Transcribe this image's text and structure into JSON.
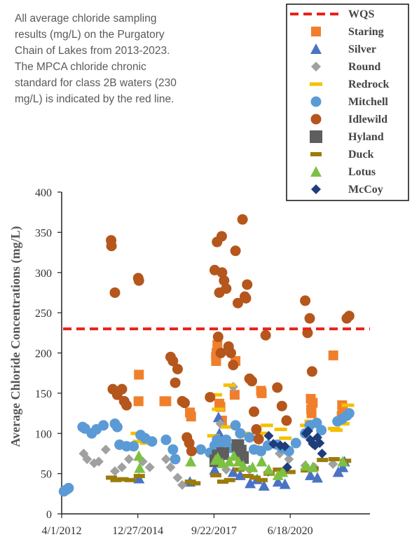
{
  "caption": [
    "All average chloride sampling",
    "results (mg/L) on the Purgatory",
    "Chain of Lakes from 2013-2023.",
    "The MPCA chloride chronic",
    "standard for class 2B waters (230",
    "mg/L) is indicated by the red line."
  ],
  "chart_data": {
    "type": "scatter",
    "ylabel": "Average Chloride Concentrations (mg/L)",
    "xlabel": "",
    "title": "",
    "ylim": [
      0,
      400
    ],
    "yticks": [
      0,
      50,
      100,
      150,
      200,
      250,
      300,
      350,
      400
    ],
    "xlim": [
      "2012-04-01",
      "2023-05-01"
    ],
    "xticks": [
      "2012-04-01",
      "2014-12-27",
      "2017-09-22",
      "2020-06-18"
    ],
    "xtick_labels": [
      "4/1/2012",
      "12/27/2014",
      "9/22/2017",
      "6/18/2020"
    ],
    "grid": false,
    "legend_position": "top-right",
    "reference_line": {
      "name": "WQS",
      "value": 230,
      "color": "#e8221b"
    },
    "series": [
      {
        "name": "Staring",
        "marker": "square",
        "color": "#f07f2c",
        "points": [
          [
            "2015-01-10",
            173
          ],
          [
            "2015-01-05",
            140
          ],
          [
            "2015-12-10",
            140
          ],
          [
            "2016-01-05",
            140
          ],
          [
            "2016-11-10",
            126
          ],
          [
            "2016-11-25",
            121
          ],
          [
            "2017-10-20",
            190
          ],
          [
            "2017-10-25",
            200
          ],
          [
            "2017-11-05",
            210
          ],
          [
            "2017-10-18",
            195
          ],
          [
            "2017-12-01",
            137
          ],
          [
            "2017-12-15",
            133
          ],
          [
            "2018-01-05",
            116
          ],
          [
            "2018-07-01",
            190
          ],
          [
            "2018-06-20",
            148
          ],
          [
            "2019-06-01",
            153
          ],
          [
            "2019-06-10",
            150
          ],
          [
            "2021-03-15",
            143
          ],
          [
            "2021-03-20",
            130
          ],
          [
            "2021-04-10",
            138
          ],
          [
            "2021-03-25",
            125
          ],
          [
            "2022-01-05",
            197
          ],
          [
            "2022-05-01",
            135
          ],
          [
            "2022-05-10",
            128
          ],
          [
            "2022-04-25",
            122
          ]
        ]
      },
      {
        "name": "Silver",
        "marker": "triangle",
        "color": "#4a73c4",
        "points": [
          [
            "2015-01-10",
            44
          ],
          [
            "2016-11-10",
            40
          ],
          [
            "2017-11-20",
            120
          ],
          [
            "2017-12-01",
            100
          ],
          [
            "2017-10-01",
            55
          ],
          [
            "2018-06-01",
            52
          ],
          [
            "2018-09-01",
            48
          ],
          [
            "2019-01-10",
            38
          ],
          [
            "2019-04-10",
            43
          ],
          [
            "2019-07-10",
            35
          ],
          [
            "2020-01-10",
            40
          ],
          [
            "2020-04-10",
            37
          ],
          [
            "2021-03-10",
            48
          ],
          [
            "2021-06-10",
            45
          ],
          [
            "2022-03-10",
            52
          ],
          [
            "2022-05-10",
            58
          ],
          [
            "2022-06-01",
            65
          ]
        ]
      },
      {
        "name": "Round",
        "marker": "diamond",
        "color": "#a0a0a0",
        "points": [
          [
            "2013-01-15",
            75
          ],
          [
            "2013-03-01",
            68
          ],
          [
            "2013-06-01",
            63
          ],
          [
            "2013-08-01",
            65
          ],
          [
            "2013-11-01",
            80
          ],
          [
            "2014-03-01",
            53
          ],
          [
            "2014-06-01",
            58
          ],
          [
            "2014-09-01",
            68
          ],
          [
            "2015-03-01",
            65
          ],
          [
            "2015-06-01",
            58
          ],
          [
            "2016-01-01",
            68
          ],
          [
            "2016-03-01",
            58
          ],
          [
            "2016-06-01",
            45
          ],
          [
            "2016-08-01",
            36
          ],
          [
            "2017-10-01",
            70
          ],
          [
            "2017-12-01",
            75
          ],
          [
            "2017-12-15",
            112
          ],
          [
            "2018-03-01",
            55
          ],
          [
            "2018-06-01",
            158
          ],
          [
            "2018-09-01",
            70
          ],
          [
            "2019-01-01",
            55
          ],
          [
            "2019-05-01",
            80
          ],
          [
            "2019-09-01",
            52
          ],
          [
            "2020-02-01",
            75
          ],
          [
            "2020-06-01",
            68
          ],
          [
            "2021-01-01",
            60
          ],
          [
            "2021-05-01",
            58
          ],
          [
            "2022-01-01",
            62
          ]
        ]
      },
      {
        "name": "Redrock",
        "marker": "dash",
        "color": "#f5c000",
        "points": [
          [
            "2014-12-15",
            100
          ],
          [
            "2015-01-15",
            90
          ],
          [
            "2015-04-15",
            88
          ],
          [
            "2017-09-15",
            97
          ],
          [
            "2017-10-15",
            148
          ],
          [
            "2017-11-15",
            130
          ],
          [
            "2018-03-15",
            108
          ],
          [
            "2018-04-15",
            160
          ],
          [
            "2018-10-15",
            100
          ],
          [
            "2019-06-15",
            100
          ],
          [
            "2019-08-15",
            110
          ],
          [
            "2020-02-15",
            105
          ],
          [
            "2020-04-15",
            94
          ],
          [
            "2021-01-15",
            110
          ],
          [
            "2021-03-15",
            115
          ],
          [
            "2022-01-15",
            106
          ],
          [
            "2022-02-15",
            104
          ],
          [
            "2022-05-15",
            112
          ],
          [
            "2022-07-15",
            135
          ]
        ]
      },
      {
        "name": "Mitchell",
        "marker": "circle",
        "color": "#5b9bd5",
        "points": [
          [
            "2012-05-01",
            28
          ],
          [
            "2012-06-01",
            30
          ],
          [
            "2012-07-01",
            32
          ],
          [
            "2013-01-01",
            108
          ],
          [
            "2013-02-01",
            106
          ],
          [
            "2013-05-01",
            100
          ],
          [
            "2013-07-01",
            105
          ],
          [
            "2013-10-01",
            110
          ],
          [
            "2014-03-01",
            112
          ],
          [
            "2014-04-01",
            108
          ],
          [
            "2014-05-01",
            86
          ],
          [
            "2014-08-01",
            84
          ],
          [
            "2014-11-01",
            84
          ],
          [
            "2015-02-01",
            98
          ],
          [
            "2015-04-01",
            94
          ],
          [
            "2015-07-01",
            90
          ],
          [
            "2016-01-01",
            92
          ],
          [
            "2016-04-01",
            80
          ],
          [
            "2016-05-01",
            68
          ],
          [
            "2017-04-01",
            80
          ],
          [
            "2017-08-01",
            76
          ],
          [
            "2017-10-01",
            85
          ],
          [
            "2017-11-01",
            92
          ],
          [
            "2018-01-01",
            88
          ],
          [
            "2018-03-01",
            92
          ],
          [
            "2018-05-01",
            82
          ],
          [
            "2018-07-01",
            110
          ],
          [
            "2018-09-01",
            100
          ],
          [
            "2019-01-01",
            95
          ],
          [
            "2019-03-01",
            80
          ],
          [
            "2019-06-01",
            78
          ],
          [
            "2019-09-01",
            85
          ],
          [
            "2020-01-01",
            86
          ],
          [
            "2020-03-01",
            82
          ],
          [
            "2020-06-01",
            78
          ],
          [
            "2020-09-01",
            88
          ],
          [
            "2021-01-01",
            100
          ],
          [
            "2021-03-01",
            110
          ],
          [
            "2021-06-01",
            113
          ],
          [
            "2021-08-01",
            104
          ],
          [
            "2022-03-01",
            115
          ],
          [
            "2022-05-01",
            118
          ],
          [
            "2022-07-01",
            122
          ],
          [
            "2022-08-01",
            125
          ]
        ]
      },
      {
        "name": "Idlewild",
        "marker": "circle",
        "color": "#b5561c",
        "points": [
          [
            "2014-01-10",
            340
          ],
          [
            "2014-01-15",
            333
          ],
          [
            "2014-03-01",
            275
          ],
          [
            "2014-02-01",
            155
          ],
          [
            "2014-04-01",
            148
          ],
          [
            "2014-06-01",
            155
          ],
          [
            "2014-07-01",
            140
          ],
          [
            "2014-08-01",
            135
          ],
          [
            "2015-01-01",
            293
          ],
          [
            "2015-01-10",
            290
          ],
          [
            "2016-03-01",
            195
          ],
          [
            "2016-04-01",
            190
          ],
          [
            "2016-06-01",
            180
          ],
          [
            "2016-05-01",
            163
          ],
          [
            "2016-08-01",
            140
          ],
          [
            "2016-09-01",
            138
          ],
          [
            "2016-10-01",
            95
          ],
          [
            "2016-11-01",
            88
          ],
          [
            "2016-12-01",
            78
          ],
          [
            "2017-08-01",
            145
          ],
          [
            "2017-10-01",
            303
          ],
          [
            "2017-11-01",
            338
          ],
          [
            "2018-01-01",
            345
          ],
          [
            "2018-01-05",
            300
          ],
          [
            "2018-02-01",
            290
          ],
          [
            "2018-03-01",
            280
          ],
          [
            "2017-12-01",
            275
          ],
          [
            "2017-11-15",
            220
          ],
          [
            "2017-12-20",
            200
          ],
          [
            "2018-04-01",
            208
          ],
          [
            "2018-05-01",
            200
          ],
          [
            "2018-06-01",
            185
          ],
          [
            "2018-07-01",
            327
          ],
          [
            "2018-08-01",
            262
          ],
          [
            "2018-10-01",
            366
          ],
          [
            "2018-11-01",
            270
          ],
          [
            "2018-11-15",
            268
          ],
          [
            "2018-12-01",
            285
          ],
          [
            "2019-01-01",
            168
          ],
          [
            "2019-02-01",
            165
          ],
          [
            "2019-03-01",
            127
          ],
          [
            "2019-04-01",
            105
          ],
          [
            "2019-05-01",
            93
          ],
          [
            "2019-08-01",
            222
          ],
          [
            "2020-01-01",
            157
          ],
          [
            "2020-03-01",
            134
          ],
          [
            "2020-05-01",
            116
          ],
          [
            "2021-01-01",
            265
          ],
          [
            "2021-02-01",
            225
          ],
          [
            "2021-03-01",
            243
          ],
          [
            "2021-04-01",
            177
          ],
          [
            "2022-07-01",
            243
          ],
          [
            "2022-08-01",
            246
          ]
        ]
      },
      {
        "name": "Hyland",
        "marker": "square-large",
        "color": "#5e5e5e",
        "points": [
          [
            "2017-10-15",
            66
          ],
          [
            "2017-11-15",
            72
          ],
          [
            "2018-01-15",
            75
          ],
          [
            "2018-08-01",
            85
          ],
          [
            "2018-09-01",
            78
          ],
          [
            "2018-10-01",
            70
          ]
        ]
      },
      {
        "name": "Duck",
        "marker": "dash-short",
        "color": "#9b7b0a",
        "points": [
          [
            "2014-01-15",
            45
          ],
          [
            "2014-03-15",
            42
          ],
          [
            "2014-06-15",
            43
          ],
          [
            "2014-09-15",
            42
          ],
          [
            "2015-01-15",
            47
          ],
          [
            "2016-11-15",
            40
          ],
          [
            "2017-01-15",
            38
          ],
          [
            "2017-10-15",
            48
          ],
          [
            "2018-01-15",
            40
          ],
          [
            "2018-04-15",
            42
          ],
          [
            "2018-08-15",
            55
          ],
          [
            "2018-12-15",
            47
          ],
          [
            "2019-03-15",
            45
          ],
          [
            "2019-06-15",
            42
          ],
          [
            "2019-09-15",
            50
          ],
          [
            "2020-01-15",
            55
          ],
          [
            "2020-06-15",
            52
          ],
          [
            "2021-01-15",
            54
          ],
          [
            "2021-04-15",
            56
          ],
          [
            "2021-08-15",
            67
          ],
          [
            "2022-01-15",
            68
          ],
          [
            "2022-06-15",
            66
          ]
        ]
      },
      {
        "name": "Lotus",
        "marker": "triangle",
        "color": "#7dc142",
        "points": [
          [
            "2015-01-10",
            72
          ],
          [
            "2015-01-20",
            57
          ],
          [
            "2016-11-20",
            65
          ],
          [
            "2017-10-10",
            67
          ],
          [
            "2017-11-10",
            70
          ],
          [
            "2018-01-10",
            63
          ],
          [
            "2018-04-10",
            65
          ],
          [
            "2018-06-10",
            72
          ],
          [
            "2018-08-10",
            65
          ],
          [
            "2018-10-10",
            60
          ],
          [
            "2019-02-10",
            58
          ],
          [
            "2019-06-10",
            65
          ],
          [
            "2019-09-10",
            55
          ],
          [
            "2020-01-10",
            48
          ],
          [
            "2020-03-10",
            52
          ],
          [
            "2021-01-10",
            60
          ],
          [
            "2021-04-10",
            58
          ],
          [
            "2022-05-10",
            65
          ]
        ]
      },
      {
        "name": "McCoy",
        "marker": "diamond",
        "color": "#1f3d7a",
        "points": [
          [
            "2019-09-10",
            97
          ],
          [
            "2019-11-10",
            87
          ],
          [
            "2020-02-10",
            85
          ],
          [
            "2020-04-10",
            84
          ],
          [
            "2020-05-10",
            58
          ],
          [
            "2021-01-10",
            100
          ],
          [
            "2021-02-10",
            103
          ],
          [
            "2021-03-10",
            92
          ],
          [
            "2021-04-10",
            87
          ],
          [
            "2021-05-10",
            85
          ],
          [
            "2021-06-10",
            95
          ],
          [
            "2021-07-10",
            88
          ],
          [
            "2021-08-10",
            75
          ]
        ]
      }
    ]
  }
}
